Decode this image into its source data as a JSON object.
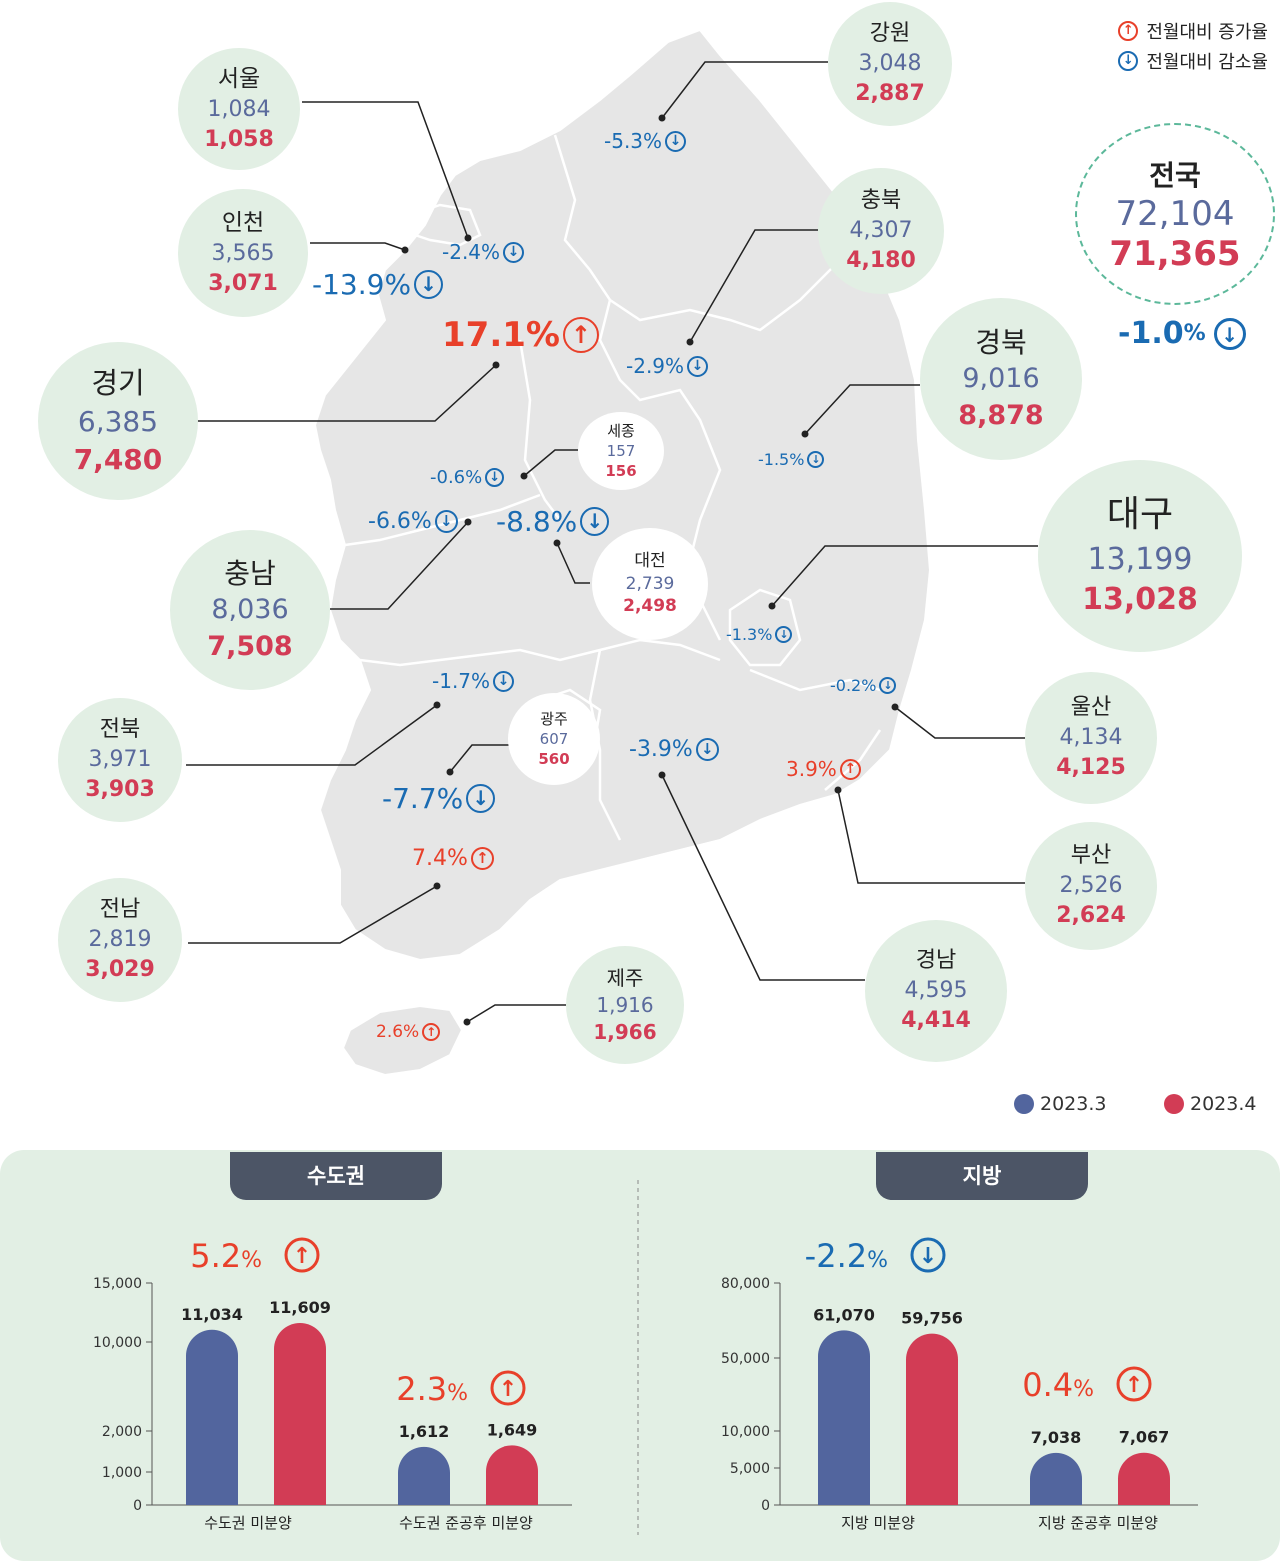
{
  "legend": {
    "increase": "전월대비 증가율",
    "decrease": "전월대비 감소율",
    "series_a": "2023.3",
    "series_b": "2023.4"
  },
  "colors": {
    "bubble": "#e2efe4",
    "series_a": "#52659e",
    "series_b": "#d23c55",
    "up": "#e8402a",
    "down": "#1a6bb2",
    "map": "#e6e6e6"
  },
  "icons": {
    "up": "arrow-up-circle-icon",
    "down": "arrow-down-circle-icon"
  },
  "national": {
    "name": "전국",
    "v_mar": "72,104",
    "v_apr": "71,365",
    "pct": "-1.0",
    "pct_sign": "%",
    "dir": "down"
  },
  "regions": [
    {
      "id": "seoul",
      "name": "서울",
      "v_mar": "1,084",
      "v_apr": "1,058",
      "pct": "-2.4%",
      "dir": "down"
    },
    {
      "id": "incheon",
      "name": "인천",
      "v_mar": "3,565",
      "v_apr": "3,071",
      "pct": "-13.9%",
      "dir": "down"
    },
    {
      "id": "gyeonggi",
      "name": "경기",
      "v_mar": "6,385",
      "v_apr": "7,480",
      "pct": "17.1%",
      "dir": "up"
    },
    {
      "id": "gangwon",
      "name": "강원",
      "v_mar": "3,048",
      "v_apr": "2,887",
      "pct": "-5.3%",
      "dir": "down"
    },
    {
      "id": "chungbuk",
      "name": "충북",
      "v_mar": "4,307",
      "v_apr": "4,180",
      "pct": "-2.9%",
      "dir": "down"
    },
    {
      "id": "gyeongbuk",
      "name": "경북",
      "v_mar": "9,016",
      "v_apr": "8,878",
      "pct": "-1.5%",
      "dir": "down"
    },
    {
      "id": "sejong",
      "name": "세종",
      "v_mar": "157",
      "v_apr": "156",
      "pct": "-0.6%",
      "dir": "down"
    },
    {
      "id": "daejeon",
      "name": "대전",
      "v_mar": "2,739",
      "v_apr": "2,498",
      "pct": "-8.8%",
      "dir": "down"
    },
    {
      "id": "chungnam",
      "name": "충남",
      "v_mar": "8,036",
      "v_apr": "7,508",
      "pct": "-6.6%",
      "dir": "down"
    },
    {
      "id": "daegu",
      "name": "대구",
      "v_mar": "13,199",
      "v_apr": "13,028",
      "pct": "-1.3%",
      "dir": "down"
    },
    {
      "id": "ulsan",
      "name": "울산",
      "v_mar": "4,134",
      "v_apr": "4,125",
      "pct": "-0.2%",
      "dir": "down"
    },
    {
      "id": "jeonbuk",
      "name": "전북",
      "v_mar": "3,971",
      "v_apr": "3,903",
      "pct": "-1.7%",
      "dir": "down"
    },
    {
      "id": "gwangju",
      "name": "광주",
      "v_mar": "607",
      "v_apr": "560",
      "pct": "-7.7%",
      "dir": "down"
    },
    {
      "id": "gyeongnam",
      "name": "경남",
      "v_mar": "4,595",
      "v_apr": "4,414",
      "pct": "-3.9%",
      "dir": "down"
    },
    {
      "id": "busan",
      "name": "부산",
      "v_mar": "2,526",
      "v_apr": "2,624",
      "pct": "3.9%",
      "dir": "up"
    },
    {
      "id": "jeonnam",
      "name": "전남",
      "v_mar": "2,819",
      "v_apr": "3,029",
      "pct": "7.4%",
      "dir": "up"
    },
    {
      "id": "jeju",
      "name": "제주",
      "v_mar": "1,916",
      "v_apr": "1,966",
      "pct": "2.6%",
      "dir": "up"
    }
  ],
  "chart_data": [
    {
      "type": "bar",
      "title": "수도권",
      "categories": [
        "수도권 미분양",
        "수도권 준공후 미분양"
      ],
      "series": [
        {
          "name": "2023.3",
          "values": [
            11034,
            1612
          ]
        },
        {
          "name": "2023.4",
          "values": [
            11609,
            1649
          ]
        }
      ],
      "value_labels": [
        [
          "11,034",
          "11,609"
        ],
        [
          "1,612",
          "1,649"
        ]
      ],
      "changes": [
        {
          "pct": "5.2",
          "pct_sign": "%",
          "dir": "up"
        },
        {
          "pct": "2.3",
          "pct_sign": "%",
          "dir": "up"
        }
      ],
      "yticks": [
        0,
        1000,
        2000,
        10000,
        15000
      ],
      "ytick_labels": [
        "0",
        "1,000",
        "2,000",
        "10,000",
        "15,000"
      ],
      "y_scale": "broken",
      "ylim": [
        0,
        15000
      ]
    },
    {
      "type": "bar",
      "title": "지방",
      "categories": [
        "지방 미분양",
        "지방 준공후 미분양"
      ],
      "series": [
        {
          "name": "2023.3",
          "values": [
            61070,
            7038
          ]
        },
        {
          "name": "2023.4",
          "values": [
            59756,
            7067
          ]
        }
      ],
      "value_labels": [
        [
          "61,070",
          "59,756"
        ],
        [
          "7,038",
          "7,067"
        ]
      ],
      "changes": [
        {
          "pct": "-2.2",
          "pct_sign": "%",
          "dir": "down"
        },
        {
          "pct": "0.4",
          "pct_sign": "%",
          "dir": "up"
        }
      ],
      "yticks": [
        0,
        5000,
        10000,
        50000,
        80000
      ],
      "ytick_labels": [
        "0",
        "5,000",
        "10,000",
        "50,000",
        "80,000"
      ],
      "y_scale": "broken",
      "ylim": [
        0,
        80000
      ]
    }
  ]
}
